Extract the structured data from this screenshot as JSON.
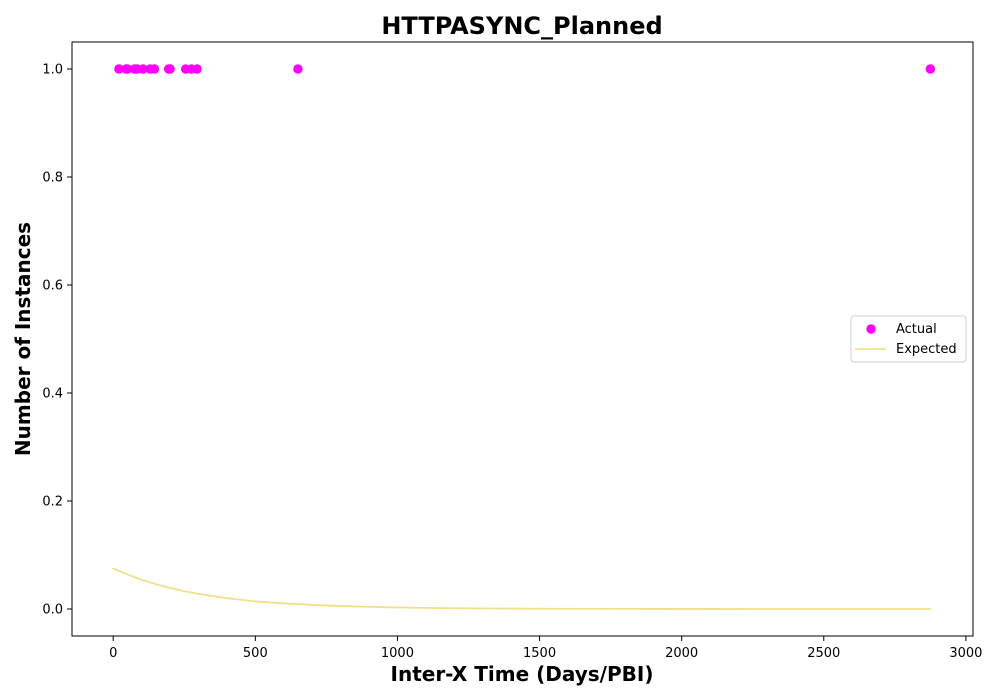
{
  "chart_data": {
    "type": "scatter",
    "title": "HTTPASYNC_Planned",
    "xlabel": "Inter-X Time (Days/PBI)",
    "ylabel": "Number of Instances",
    "xlim": [
      -145,
      3025
    ],
    "ylim": [
      -0.05,
      1.05
    ],
    "xticks": [
      0,
      500,
      1000,
      1500,
      2000,
      2500,
      3000
    ],
    "yticks": [
      0.0,
      0.2,
      0.4,
      0.6,
      0.8,
      1.0
    ],
    "xtick_labels": [
      "0",
      "500",
      "1000",
      "1500",
      "2000",
      "2500",
      "3000"
    ],
    "ytick_labels": [
      "0.0",
      "0.2",
      "0.4",
      "0.6",
      "0.8",
      "1.0"
    ],
    "grid": false,
    "legend_position": "right",
    "series": [
      {
        "name": "Actual",
        "kind": "scatter",
        "color": "#ff00ff",
        "x": [
          20,
          45,
          50,
          75,
          85,
          105,
          130,
          145,
          195,
          200,
          255,
          275,
          295,
          650,
          2875
        ],
        "y": [
          1,
          1,
          1,
          1,
          1,
          1,
          1,
          1,
          1,
          1,
          1,
          1,
          1,
          1,
          1
        ]
      },
      {
        "name": "Expected",
        "kind": "line",
        "color": "#f0e08a",
        "x": [
          0,
          50,
          100,
          150,
          200,
          250,
          300,
          400,
          500,
          600,
          700,
          800,
          1000,
          1200,
          1500,
          2000,
          2500,
          2875
        ],
        "y": [
          0.075,
          0.064,
          0.054,
          0.046,
          0.039,
          0.033,
          0.028,
          0.02,
          0.014,
          0.0105,
          0.0075,
          0.0054,
          0.0028,
          0.0014,
          0.0005,
          0.0001,
          0.0,
          0.0
        ]
      }
    ]
  }
}
